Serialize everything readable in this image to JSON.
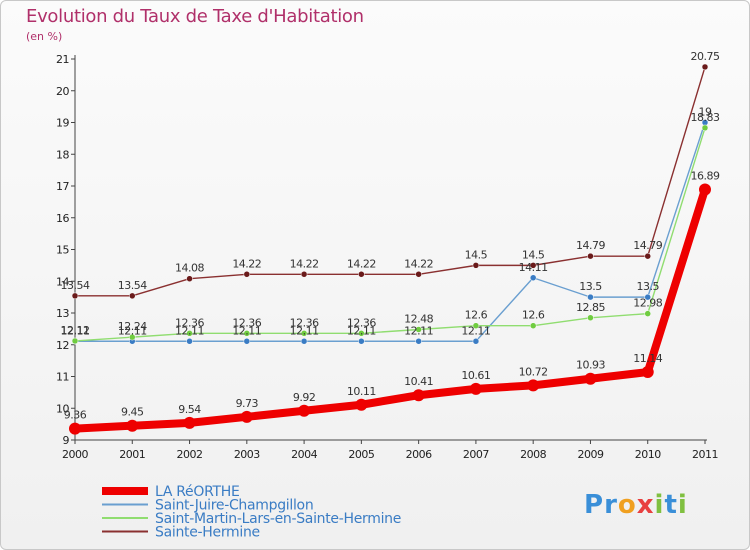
{
  "title": "Evolution du Taux de Taxe d'Habitation",
  "subtitle": "(en %)",
  "logo": {
    "letters": [
      "P",
      "r",
      "o",
      "x",
      "i",
      "t",
      "i"
    ],
    "colors": [
      "#3a8fd8",
      "#3a8fd8",
      "#f0a020",
      "#e84040",
      "#80c040",
      "#3a8fd8",
      "#80c040"
    ]
  },
  "chart_data": {
    "type": "line",
    "x": [
      2000,
      2001,
      2002,
      2003,
      2004,
      2005,
      2006,
      2007,
      2008,
      2009,
      2010,
      2011
    ],
    "ylim": [
      9,
      21
    ],
    "yticks": [
      9,
      10,
      11,
      12,
      13,
      14,
      15,
      16,
      17,
      18,
      19,
      20,
      21
    ],
    "grid": false,
    "legend_position": "bottom-left",
    "series": [
      {
        "name": "LA RéORTHE",
        "color": "#ee0000",
        "values": [
          9.36,
          9.45,
          9.54,
          9.73,
          9.92,
          10.11,
          10.41,
          10.61,
          10.72,
          10.93,
          11.14,
          16.89
        ],
        "labels": [
          "9.36",
          "9.45",
          "9.54",
          "9.73",
          "9.92",
          "10.11",
          "10.41",
          "10.61",
          "10.72",
          "10.93",
          "11.14",
          "16.89"
        ]
      },
      {
        "name": "Saint-Juire-Champgillon",
        "color": "#6a9fd0",
        "point_color": "#3a7cc4",
        "values": [
          12.11,
          12.11,
          12.11,
          12.11,
          12.11,
          12.11,
          12.11,
          12.11,
          14.11,
          13.5,
          13.5,
          19
        ],
        "labels": [
          "12.11",
          "12.11",
          "12.11",
          "12.11",
          "12.11",
          "12.11",
          "12.11",
          "12.11",
          "14.11",
          "13.5",
          "13.5",
          "19"
        ]
      },
      {
        "name": "Saint-Martin-Lars-en-Sainte-Hermine",
        "color": "#90dd70",
        "point_color": "#70cc40",
        "values": [
          12.12,
          12.24,
          12.36,
          12.36,
          12.36,
          12.36,
          12.48,
          12.6,
          12.6,
          12.85,
          12.98,
          18.83
        ],
        "labels": [
          "12.12",
          "12.24",
          "12.36",
          "12.36",
          "12.36",
          "12.36",
          "12.48",
          "12.6",
          "12.6",
          "12.85",
          "12.98",
          "18.83"
        ]
      },
      {
        "name": "Sainte-Hermine",
        "color": "#8a3030",
        "point_color": "#6a1a1a",
        "values": [
          13.54,
          13.54,
          14.08,
          14.22,
          14.22,
          14.22,
          14.22,
          14.5,
          14.5,
          14.79,
          14.79,
          20.75
        ],
        "labels": [
          "13.54",
          "13.54",
          "14.08",
          "14.22",
          "14.22",
          "14.22",
          "14.22",
          "14.5",
          "14.5",
          "14.79",
          "14.79",
          "20.75"
        ]
      }
    ]
  }
}
